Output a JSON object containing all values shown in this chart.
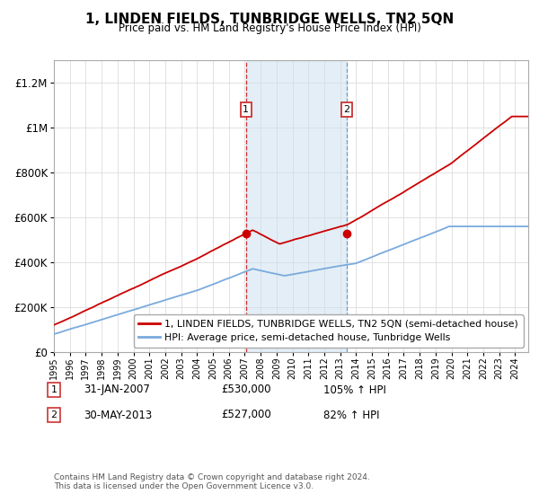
{
  "title": "1, LINDEN FIELDS, TUNBRIDGE WELLS, TN2 5QN",
  "subtitle": "Price paid vs. HM Land Registry's House Price Index (HPI)",
  "legend_line1": "1, LINDEN FIELDS, TUNBRIDGE WELLS, TN2 5QN (semi-detached house)",
  "legend_line2": "HPI: Average price, semi-detached house, Tunbridge Wells",
  "annotation1": {
    "num": "1",
    "date": "31-JAN-2007",
    "price": "£530,000",
    "pct": "105% ↑ HPI"
  },
  "annotation2": {
    "num": "2",
    "date": "30-MAY-2013",
    "price": "£527,000",
    "pct": "82% ↑ HPI"
  },
  "footer": "Contains HM Land Registry data © Crown copyright and database right 2024.\nThis data is licensed under the Open Government Licence v3.0.",
  "ylim": [
    0,
    1300000
  ],
  "yticks": [
    0,
    200000,
    400000,
    600000,
    800000,
    1000000,
    1200000
  ],
  "ytick_labels": [
    "£0",
    "£200K",
    "£400K",
    "£600K",
    "£800K",
    "£1M",
    "£1.2M"
  ],
  "sale1_x": 2007.08,
  "sale1_y": 530000,
  "sale2_x": 2013.41,
  "sale2_y": 527000,
  "hpi_line_color": "#7aaadd",
  "price_line_color": "#cc0000",
  "shade_color": "#cce0f0",
  "shade_alpha": 0.55,
  "xmin": 1995.0,
  "xmax": 2024.83
}
